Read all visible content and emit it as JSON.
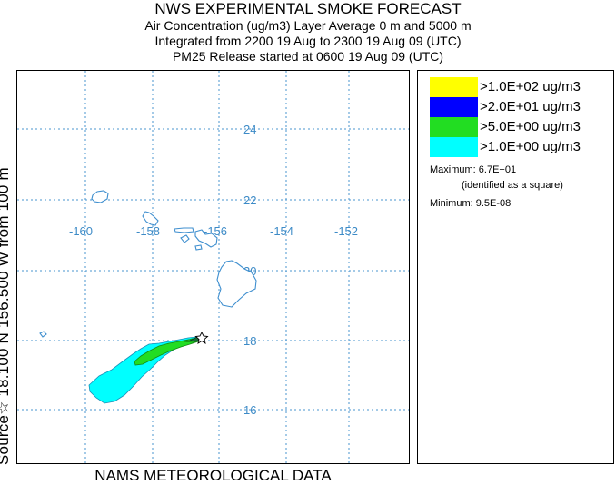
{
  "header": {
    "title": "NWS EXPERIMENTAL SMOKE FORECAST",
    "line1": "Air Concentration (ug/m3) Layer Average    0 m and  5000 m",
    "line2": "Integrated from 2200 19 Aug to 2300 19 Aug 09 (UTC)",
    "line3": "PM25 Release started at 0600 19 Aug 09 (UTC)"
  },
  "map": {
    "longitude_labels": [
      "-160",
      "-158",
      "-156",
      "-154",
      "-152"
    ],
    "latitude_labels": [
      "24",
      "22",
      "20",
      "18",
      "16"
    ],
    "side_label": "Source☆ 18.100  N 156.500  W    from   100 m",
    "source_marker": "☆",
    "bottom_label": "NAMS METEOROLOGICAL DATA",
    "colors": {
      "gridline": "#4a95cf",
      "coastline": "#3f8fcf",
      "plume_outer": "#00ffff",
      "plume_mid": "#22dd22",
      "plume_inner": "#0000ff",
      "plume_core": "#ffff00"
    }
  },
  "legend": {
    "items": [
      {
        "label": ">1.0E+02 ug/m3",
        "color": "#ffff00"
      },
      {
        "label": ">2.0E+01 ug/m3",
        "color": "#0000ff"
      },
      {
        "label": ">5.0E+00 ug/m3",
        "color": "#22dd22"
      },
      {
        "label": ">1.0E+00 ug/m3",
        "color": "#00ffff"
      }
    ],
    "maximum": "Maximum: 6.7E+01",
    "maximum_note": "(identified as a square)",
    "minimum": "Minimum: 9.5E-08"
  }
}
